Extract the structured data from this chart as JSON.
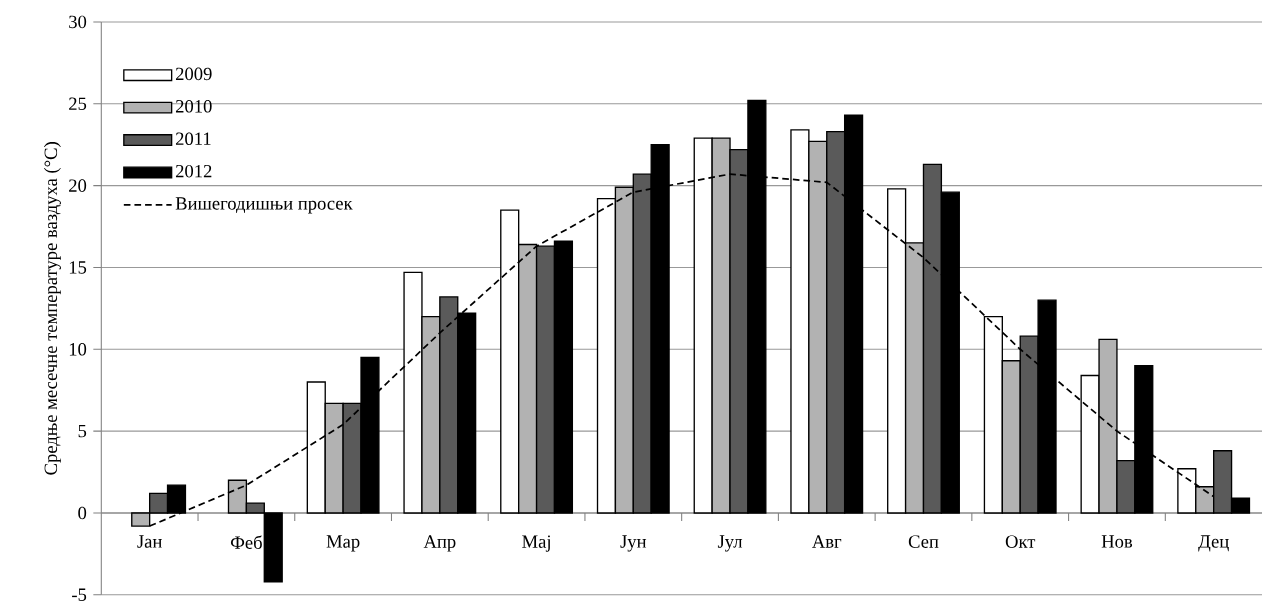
{
  "chart_data": {
    "type": "bar",
    "ylabel": "Средње месечне температуре ваздуха (°C)",
    "categories": [
      "Јан",
      "Феб",
      "Мар",
      "Апр",
      "Мај",
      "Јун",
      "Јул",
      "Авг",
      "Сеп",
      "Окт",
      "Нов",
      "Дец"
    ],
    "series": [
      {
        "name": "2009",
        "color": "#ffffff",
        "values": [
          null,
          null,
          8.0,
          14.7,
          18.5,
          19.2,
          22.9,
          23.4,
          19.8,
          12.0,
          8.4,
          2.7
        ]
      },
      {
        "name": "2010",
        "color": "#b2b2b2",
        "values": [
          -0.8,
          2.0,
          6.7,
          12.0,
          16.4,
          19.9,
          22.9,
          22.7,
          16.5,
          9.3,
          10.6,
          1.6
        ]
      },
      {
        "name": "2011",
        "color": "#5a5a5a",
        "values": [
          1.2,
          0.6,
          6.7,
          13.2,
          16.3,
          20.7,
          22.2,
          23.3,
          21.3,
          10.8,
          3.2,
          3.8
        ]
      },
      {
        "name": "2012",
        "color": "#000000",
        "values": [
          1.7,
          -4.2,
          9.5,
          12.2,
          16.6,
          22.5,
          25.2,
          24.3,
          19.6,
          13.0,
          9.0,
          0.9
        ]
      },
      {
        "name": "Вишегодишњи просек",
        "type": "line",
        "line_style": "dashed",
        "color": "#000000",
        "values": [
          -0.8,
          1.7,
          5.4,
          11.0,
          16.3,
          19.6,
          20.7,
          20.2,
          15.6,
          10.0,
          5.0,
          1.0
        ]
      }
    ],
    "ylim": [
      -5,
      30
    ],
    "yticks": [
      -5,
      0,
      5,
      10,
      15,
      20,
      25,
      30
    ],
    "grid": "y",
    "legend": "top left"
  }
}
